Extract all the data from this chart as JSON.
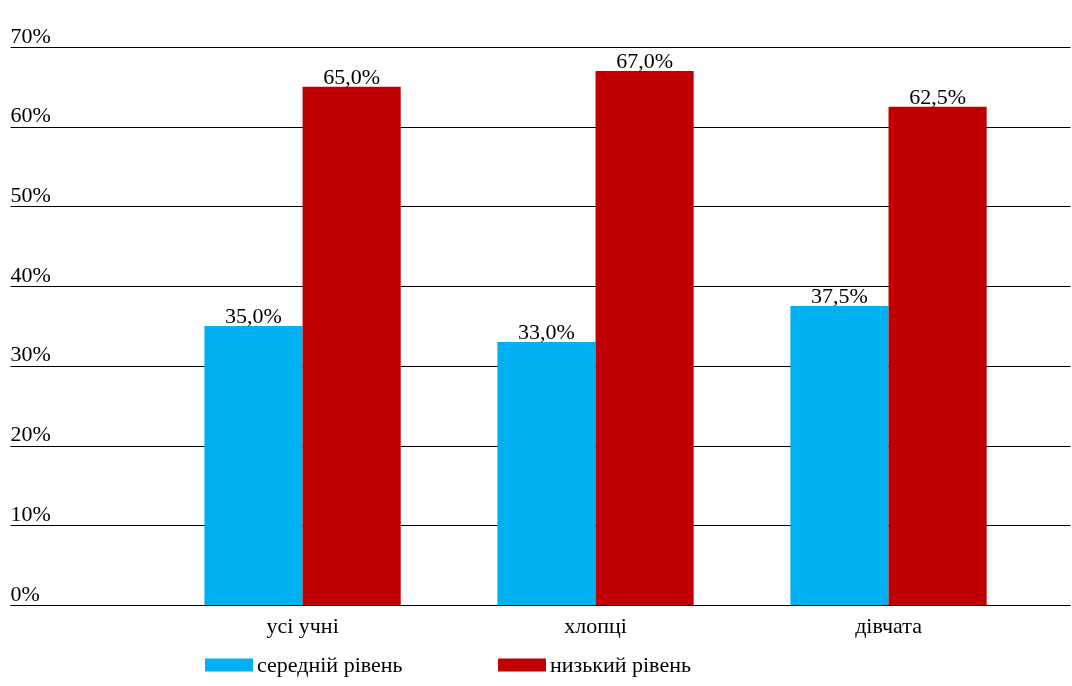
{
  "chart_data": {
    "type": "bar",
    "categories": [
      "усі учні",
      "хлопці",
      "дівчата"
    ],
    "series": [
      {
        "name": "середній рівень",
        "color": "#00b0f0",
        "values": [
          35,
          33,
          37.5
        ],
        "value_labels": [
          "35,0%",
          "33,0%",
          "37,5%"
        ]
      },
      {
        "name": "низький рівень",
        "color": "#c00000",
        "values": [
          65,
          67,
          62.5
        ],
        "value_labels": [
          "65,0%",
          "67,0%",
          "62,5%"
        ]
      }
    ],
    "ylim": [
      0,
      70
    ],
    "yticks": [
      {
        "value": 0,
        "label": "0%"
      },
      {
        "value": 10,
        "label": "10%"
      },
      {
        "value": 20,
        "label": "20%"
      },
      {
        "value": 30,
        "label": "30%"
      },
      {
        "value": 40,
        "label": "40%"
      },
      {
        "value": 50,
        "label": "50%"
      },
      {
        "value": 60,
        "label": "60%"
      },
      {
        "value": 70,
        "label": "70%"
      }
    ],
    "grid": "y",
    "legend": "bottom"
  }
}
